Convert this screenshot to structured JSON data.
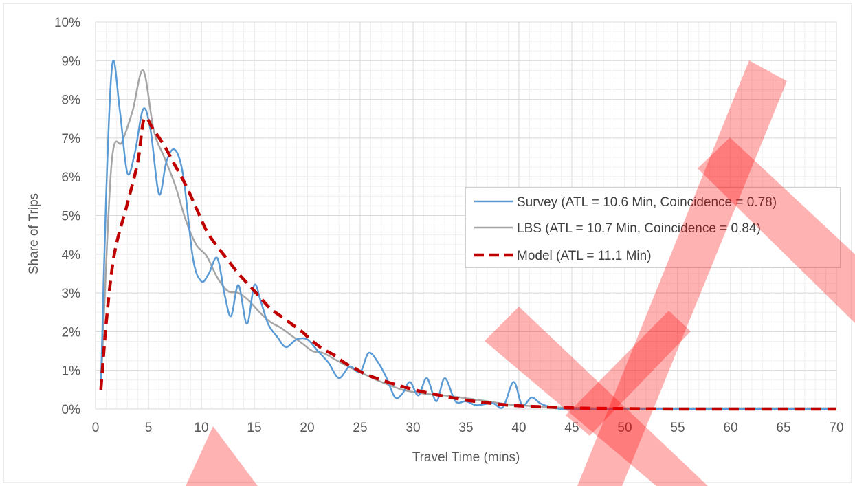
{
  "chart_data": {
    "type": "line",
    "xlabel": "Travel Time (mins)",
    "ylabel": "Share of Trips",
    "xlim": [
      0,
      70
    ],
    "ylim": [
      0,
      10
    ],
    "x_ticks": [
      0,
      5,
      10,
      15,
      20,
      25,
      30,
      35,
      40,
      45,
      50,
      55,
      60,
      65,
      70
    ],
    "x_tick_labels": [
      "0",
      "5",
      "10",
      "15",
      "20",
      "25",
      "30",
      "35",
      "40",
      "45",
      "50",
      "55",
      "60",
      "65",
      "70"
    ],
    "y_ticks": [
      0,
      1,
      2,
      3,
      4,
      5,
      6,
      7,
      8,
      9,
      10
    ],
    "y_tick_labels": [
      "0%",
      "1%",
      "2%",
      "3%",
      "4%",
      "5%",
      "6%",
      "7%",
      "8%",
      "9%",
      "10%"
    ],
    "grid": true,
    "legend_placement": "right",
    "series": [
      {
        "name": "Survey (ATL = 10.6 Min, Coincidence = 0.78)",
        "color": "#5B9BD5",
        "dash": "solid",
        "x": [
          0.5,
          1,
          1.6,
          2.3,
          3,
          3.7,
          4.5,
          5.2,
          6,
          6.7,
          7.5,
          8.3,
          9.2,
          10,
          10.7,
          11.5,
          12.2,
          12.8,
          13.5,
          14.3,
          15,
          15.6,
          16.3,
          17.2,
          18,
          19,
          20,
          21,
          22,
          23,
          24,
          25,
          25.8,
          26.7,
          27.5,
          28.3,
          29,
          29.7,
          30.5,
          31.3,
          32.2,
          33,
          34,
          35,
          36,
          37.5,
          38.5,
          39.5,
          40.3,
          41.2,
          42,
          43,
          44,
          46,
          48,
          50,
          55,
          60,
          65,
          70
        ],
        "y": [
          0.5,
          5.5,
          8.93,
          7.7,
          6.1,
          6.6,
          7.75,
          7.2,
          5.55,
          6.4,
          6.7,
          6.0,
          3.9,
          3.3,
          3.5,
          3.9,
          2.95,
          2.4,
          3.2,
          2.2,
          3.2,
          2.8,
          2.2,
          1.85,
          1.6,
          1.8,
          1.8,
          1.5,
          1.2,
          0.8,
          1.1,
          0.95,
          1.45,
          1.2,
          0.8,
          0.3,
          0.4,
          0.7,
          0.35,
          0.8,
          0.2,
          0.8,
          0.2,
          0.2,
          0.1,
          0.15,
          0.05,
          0.7,
          0.1,
          0.3,
          0.15,
          0.05,
          0.0,
          0.0,
          0.0,
          0.0,
          0.0,
          0.0,
          0.0,
          0.0
        ]
      },
      {
        "name": "LBS (ATL = 10.7 Min, Coincidence = 0.84)",
        "color": "#A5A5A5",
        "dash": "solid",
        "x": [
          0.5,
          1.5,
          2.5,
          3.5,
          4.5,
          5.5,
          6.5,
          7.5,
          8.5,
          9.5,
          10.5,
          11.5,
          12.5,
          13.5,
          14.5,
          15.5,
          16.5,
          17.5,
          18.5,
          19.5,
          20.5,
          21.5,
          22.5,
          23.5,
          25,
          27,
          29,
          31,
          33,
          35,
          37,
          39,
          41,
          43,
          45,
          48,
          52,
          56,
          60,
          65,
          70
        ],
        "y": [
          0.5,
          6.3,
          6.9,
          7.7,
          8.75,
          7.2,
          6.5,
          5.8,
          4.9,
          4.25,
          3.95,
          3.4,
          3.05,
          3.0,
          2.8,
          2.5,
          2.25,
          2.1,
          1.9,
          1.7,
          1.5,
          1.45,
          1.3,
          1.15,
          0.95,
          0.7,
          0.5,
          0.4,
          0.35,
          0.28,
          0.2,
          0.12,
          0.08,
          0.05,
          0.03,
          0.02,
          0.02,
          0.02,
          0.02,
          0.02,
          0.02
        ]
      },
      {
        "name": "Model (ATL = 11.1 Min)",
        "color": "#C00000",
        "dash": "dashed",
        "x": [
          0.5,
          1,
          1.5,
          2,
          3,
          4,
          4.6,
          5.5,
          6.5,
          7.5,
          8.5,
          9.5,
          10.5,
          11.5,
          12.5,
          13.5,
          14.5,
          15.5,
          16.5,
          17.5,
          18.5,
          19.5,
          20.5,
          21.5,
          22.5,
          23.5,
          24.5,
          25.5,
          27,
          29,
          31,
          33,
          35,
          37,
          39,
          41,
          43,
          45,
          47,
          50,
          55,
          60,
          65,
          70
        ],
        "y": [
          0.5,
          2.2,
          3.5,
          4.3,
          5.3,
          6.4,
          7.5,
          7.2,
          6.8,
          6.3,
          5.8,
          5.2,
          4.6,
          4.2,
          3.85,
          3.5,
          3.2,
          2.9,
          2.6,
          2.4,
          2.2,
          2.0,
          1.75,
          1.55,
          1.4,
          1.2,
          1.05,
          0.9,
          0.75,
          0.58,
          0.44,
          0.33,
          0.23,
          0.16,
          0.1,
          0.07,
          0.05,
          0.03,
          0.02,
          0.01,
          0.0,
          0.0,
          0.0,
          0.0
        ]
      }
    ]
  }
}
